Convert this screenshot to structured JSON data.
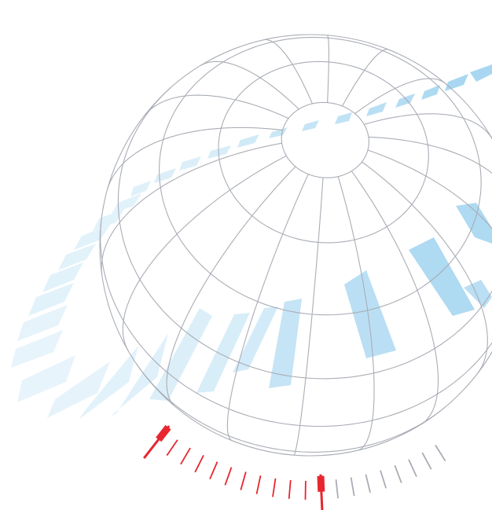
{
  "illustration": {
    "subject": "globe-wireframe-with-dial",
    "colors": {
      "background": "#ffffff",
      "grid": "#a9adb5",
      "band": "#8ccaec",
      "dial_red": "#e8262d",
      "dial_gray": "#a9adb5"
    }
  }
}
